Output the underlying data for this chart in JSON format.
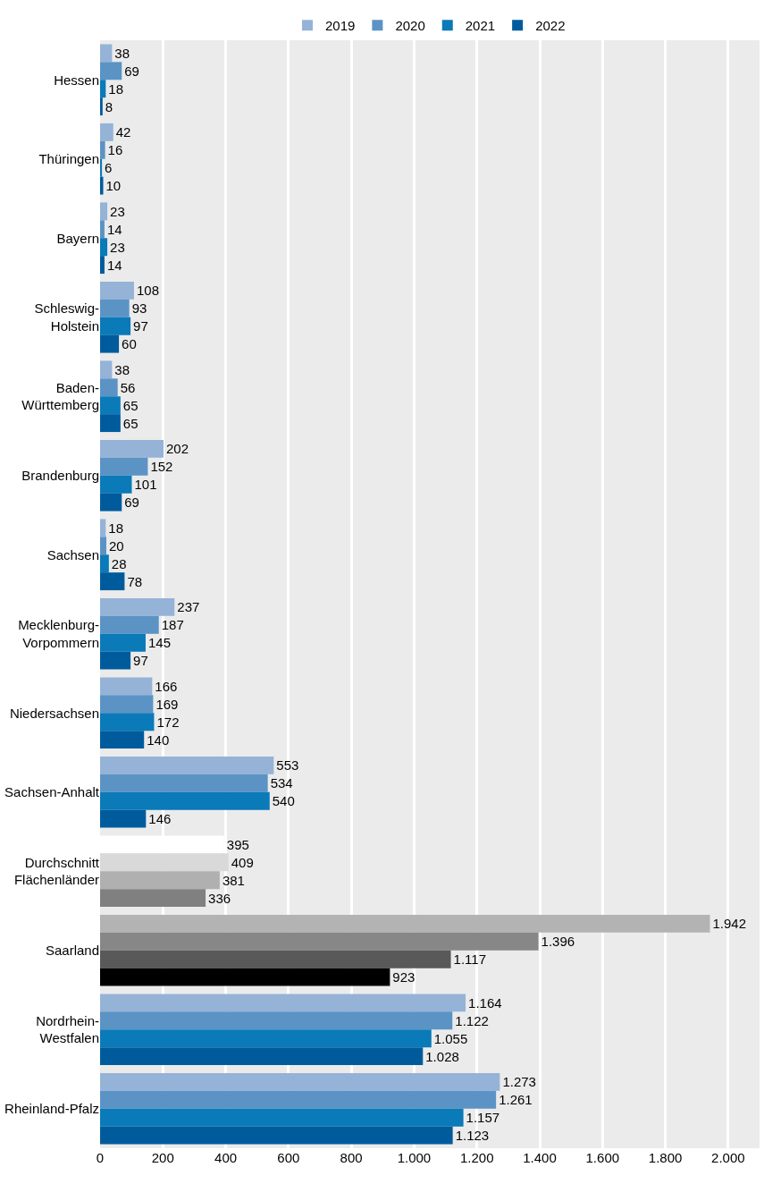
{
  "chart_data": {
    "type": "bar",
    "orientation": "horizontal",
    "categories": [
      "Hessen",
      "Thüringen",
      "Bayern",
      "Schleswig-\nHolstein",
      "Baden-\nWürttemberg",
      "Brandenburg",
      "Sachsen",
      "Mecklenburg-\nVorpommern",
      "Niedersachsen",
      "Sachsen-Anhalt",
      "Durchschnitt\nFlächenländer",
      "Saarland",
      "Nordrhein-\nWestfalen",
      "Rheinland-Pfalz"
    ],
    "series": [
      {
        "name": "2019",
        "color": "#95b3d7",
        "colors": [
          null,
          null,
          null,
          null,
          null,
          null,
          null,
          null,
          null,
          null,
          "#ffffff",
          "#b3b3b3",
          null,
          null
        ],
        "values": [
          38,
          42,
          23,
          108,
          38,
          202,
          18,
          237,
          166,
          553,
          395,
          1942,
          1164,
          1273
        ],
        "value_labels": [
          "38",
          "42",
          "23",
          "108",
          "38",
          "202",
          "18",
          "237",
          "166",
          "553",
          "395",
          "1.942",
          "1.164",
          "1.273"
        ]
      },
      {
        "name": "2020",
        "color": "#5b93c5",
        "colors": [
          null,
          null,
          null,
          null,
          null,
          null,
          null,
          null,
          null,
          null,
          "#d9d9d9",
          "#878787",
          null,
          null
        ],
        "values": [
          69,
          16,
          14,
          93,
          56,
          152,
          20,
          187,
          169,
          534,
          409,
          1396,
          1122,
          1261
        ],
        "value_labels": [
          "69",
          "16",
          "14",
          "93",
          "56",
          "152",
          "20",
          "187",
          "169",
          "534",
          "409",
          "1.396",
          "1.122",
          "1.261"
        ]
      },
      {
        "name": "2021",
        "color": "#0a7ab8",
        "colors": [
          null,
          null,
          null,
          null,
          null,
          null,
          null,
          null,
          null,
          null,
          "#b0b0b0",
          "#595959",
          null,
          null
        ],
        "values": [
          18,
          6,
          23,
          97,
          65,
          101,
          28,
          145,
          172,
          540,
          381,
          1117,
          1055,
          1157
        ],
        "value_labels": [
          "18",
          "6",
          "23",
          "97",
          "65",
          "101",
          "28",
          "145",
          "172",
          "540",
          "381",
          "1.117",
          "1.055",
          "1.157"
        ]
      },
      {
        "name": "2022",
        "color": "#005b9c",
        "colors": [
          null,
          null,
          null,
          null,
          null,
          null,
          null,
          null,
          null,
          null,
          "#808080",
          "#000000",
          null,
          null
        ],
        "values": [
          8,
          10,
          14,
          60,
          65,
          69,
          78,
          97,
          140,
          146,
          336,
          923,
          1028,
          1123
        ],
        "value_labels": [
          "8",
          "10",
          "14",
          "60",
          "65",
          "69",
          "78",
          "97",
          "140",
          "146",
          "336",
          "923",
          "1.028",
          "1.123"
        ]
      }
    ],
    "xlim": [
      0,
      2100
    ],
    "xticks": [
      0,
      200,
      400,
      {
        "value": 600,
        "label": "600"
      },
      800,
      {
        "value": 1000,
        "label": "1.000"
      },
      {
        "value": 1200,
        "label": "1.200"
      },
      {
        "value": 1400,
        "label": "1.400"
      },
      {
        "value": 1600,
        "label": "1.600"
      },
      {
        "value": 1800,
        "label": "1.800"
      },
      {
        "value": 2000,
        "label": "2.000"
      }
    ],
    "grid": "x",
    "legend": "top"
  }
}
